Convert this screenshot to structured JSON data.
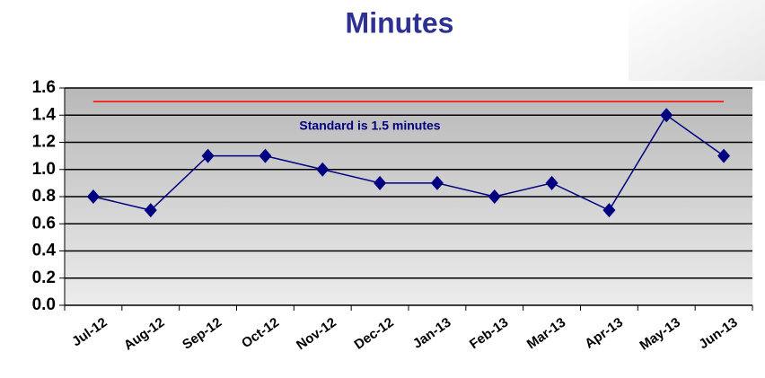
{
  "chart_data": {
    "type": "line",
    "title": "Minutes",
    "categories": [
      "Jul-12",
      "Aug-12",
      "Sep-12",
      "Oct-12",
      "Nov-12",
      "Dec-12",
      "Jan-13",
      "Feb-13",
      "Mar-13",
      "Apr-13",
      "May-13",
      "Jun-13"
    ],
    "series": [
      {
        "color": "#000080",
        "values": [
          0.8,
          0.7,
          1.1,
          1.1,
          1.0,
          0.9,
          0.9,
          0.8,
          0.9,
          0.7,
          1.4,
          1.1
        ]
      }
    ],
    "reference_line": {
      "value": 1.5,
      "color": "#ff0000"
    },
    "annotation": "Standard is 1.5 minutes",
    "ylim": [
      0,
      1.6
    ],
    "yticks": [
      {
        "value": 0,
        "label": "0.0"
      },
      0.2,
      0.4,
      0.6,
      0.8,
      {
        "value": 1,
        "label": "1.0"
      },
      1.2,
      1.4,
      1.6
    ],
    "grid": true
  }
}
